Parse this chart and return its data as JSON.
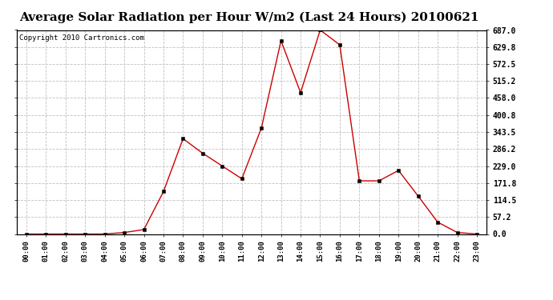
{
  "title": "Average Solar Radiation per Hour W/m2 (Last 24 Hours) 20100621",
  "copyright": "Copyright 2010 Cartronics.com",
  "hours": [
    "00:00",
    "01:00",
    "02:00",
    "03:00",
    "04:00",
    "05:00",
    "06:00",
    "07:00",
    "08:00",
    "09:00",
    "10:00",
    "11:00",
    "12:00",
    "13:00",
    "14:00",
    "15:00",
    "16:00",
    "17:00",
    "18:00",
    "19:00",
    "20:00",
    "21:00",
    "22:00",
    "23:00"
  ],
  "values": [
    0,
    0,
    0,
    0,
    0,
    5,
    15,
    143,
    321,
    272,
    229,
    186,
    357,
    651,
    476,
    687,
    637,
    179,
    179,
    214,
    128,
    40,
    5,
    0
  ],
  "line_color": "#cc0000",
  "marker": "s",
  "marker_size": 2.5,
  "background_color": "#ffffff",
  "grid_color": "#c0c0c0",
  "ylim": [
    0,
    687.0
  ],
  "yticks": [
    0.0,
    57.2,
    114.5,
    171.8,
    229.0,
    286.2,
    343.5,
    400.8,
    458.0,
    515.2,
    572.5,
    629.8,
    687.0
  ],
  "title_fontsize": 11,
  "copyright_fontsize": 6.5
}
